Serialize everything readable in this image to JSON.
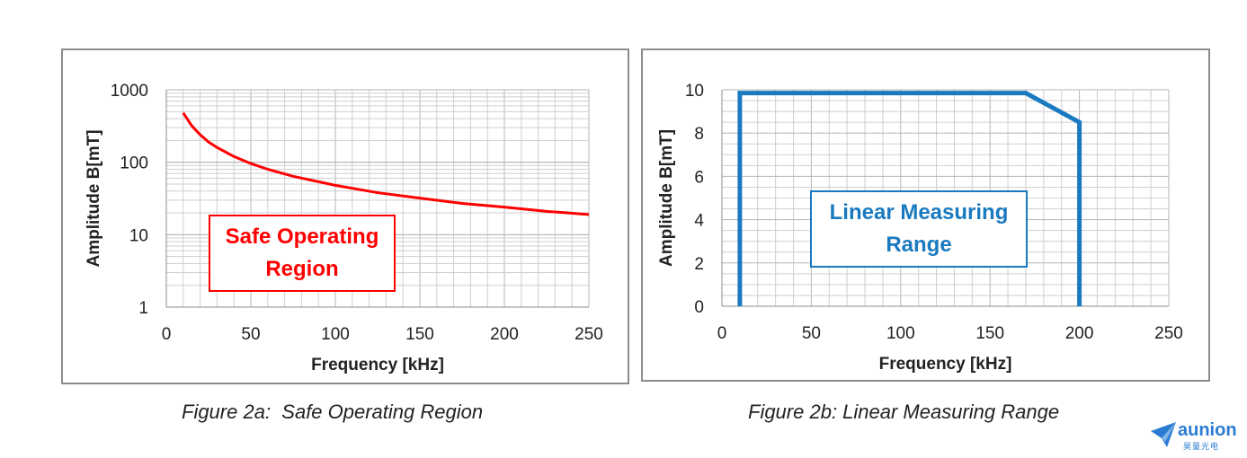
{
  "captions": {
    "a": "Figure 2a:  Safe Operating Region",
    "b": "Figure 2b: Linear Measuring Range"
  },
  "logo": {
    "text": "aunion",
    "subtext": "昊量光电",
    "icon": "paper-plane-icon"
  },
  "chart_data": [
    {
      "type": "line",
      "xlabel": "Frequency [kHz]",
      "ylabel": "Amplitude B[mT]",
      "yscale": "log",
      "xlim": [
        0,
        250
      ],
      "ylim": [
        1,
        1000
      ],
      "x_ticks": [
        "0",
        "50",
        "100",
        "150",
        "200",
        "250"
      ],
      "y_ticks": [
        "1",
        "10",
        "100",
        "1000"
      ],
      "grid": true,
      "series": [
        {
          "color": "#ff0000",
          "x": [
            10,
            15,
            20,
            25,
            30,
            40,
            50,
            60,
            75,
            100,
            125,
            150,
            175,
            200,
            225,
            250
          ],
          "y": [
            480,
            320,
            240,
            190,
            160,
            120,
            96,
            80,
            64,
            48,
            38,
            32,
            27,
            24,
            21,
            19
          ]
        }
      ],
      "annotation": {
        "text": "Safe Operating\nRegion",
        "color": "#ff0000"
      }
    },
    {
      "type": "line",
      "xlabel": "Frequency [kHz]",
      "ylabel": "Amplitude B[mT]",
      "xlim": [
        0,
        250
      ],
      "ylim": [
        0,
        10
      ],
      "x_ticks": [
        "0",
        "50",
        "100",
        "150",
        "200",
        "250"
      ],
      "y_ticks": [
        "0",
        "2",
        "4",
        "6",
        "8",
        "10"
      ],
      "grid": true,
      "series": [
        {
          "color": "#1a7abf",
          "x": [
            10,
            10,
            170,
            200,
            200
          ],
          "y": [
            0,
            9.85,
            9.85,
            8.5,
            0
          ]
        }
      ],
      "annotation": {
        "text": "Linear Measuring\nRange",
        "color": "#1a7abf"
      }
    }
  ]
}
